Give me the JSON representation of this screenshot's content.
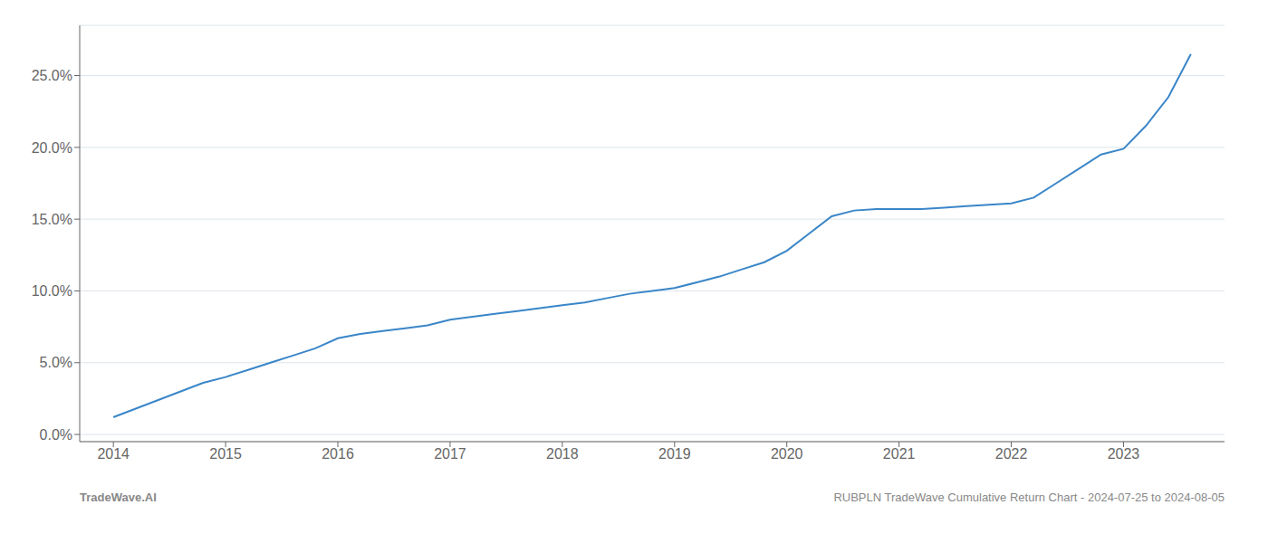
{
  "chart_data": {
    "type": "line",
    "x": [
      2014.0,
      2014.2,
      2014.4,
      2014.6,
      2014.8,
      2015.0,
      2015.2,
      2015.4,
      2015.6,
      2015.8,
      2016.0,
      2016.2,
      2016.4,
      2016.6,
      2016.8,
      2017.0,
      2017.2,
      2017.4,
      2017.6,
      2017.8,
      2018.0,
      2018.2,
      2018.4,
      2018.6,
      2018.8,
      2019.0,
      2019.2,
      2019.4,
      2019.6,
      2019.8,
      2020.0,
      2020.2,
      2020.4,
      2020.6,
      2020.8,
      2021.0,
      2021.2,
      2021.4,
      2021.6,
      2021.8,
      2022.0,
      2022.2,
      2022.4,
      2022.6,
      2022.8,
      2023.0,
      2023.2,
      2023.4,
      2023.6
    ],
    "values": [
      1.2,
      1.8,
      2.4,
      3.0,
      3.6,
      4.0,
      4.5,
      5.0,
      5.5,
      6.0,
      6.7,
      7.0,
      7.2,
      7.4,
      7.6,
      8.0,
      8.2,
      8.4,
      8.6,
      8.8,
      9.0,
      9.2,
      9.5,
      9.8,
      10.0,
      10.2,
      10.6,
      11.0,
      11.5,
      12.0,
      12.8,
      14.0,
      15.2,
      15.6,
      15.7,
      15.7,
      15.7,
      15.8,
      15.9,
      16.0,
      16.1,
      16.5,
      17.5,
      18.5,
      19.5,
      19.9,
      21.5,
      23.5,
      26.5
    ],
    "color": "#3a86c8",
    "xlim": [
      2013.7,
      2023.9
    ],
    "xticks": [
      2014,
      2015,
      2016,
      2017,
      2018,
      2019,
      2020,
      2021,
      2022,
      2023
    ],
    "ylim": [
      -0.5,
      28.5
    ],
    "yticks": [
      {
        "value": 0.0,
        "label": "0.0%"
      },
      {
        "value": 5.0,
        "label": "5.0%"
      },
      {
        "value": 10.0,
        "label": "10.0%"
      },
      {
        "value": 15.0,
        "label": "15.0%"
      },
      {
        "value": 20.0,
        "label": "20.0%"
      },
      {
        "value": 25.0,
        "label": "25.0%"
      }
    ],
    "grid": "y",
    "annotations": [
      "TradeWave.AI",
      "RUBPLN TradeWave Cumulative Return Chart - 2024-07-25 to 2024-08-05"
    ]
  }
}
